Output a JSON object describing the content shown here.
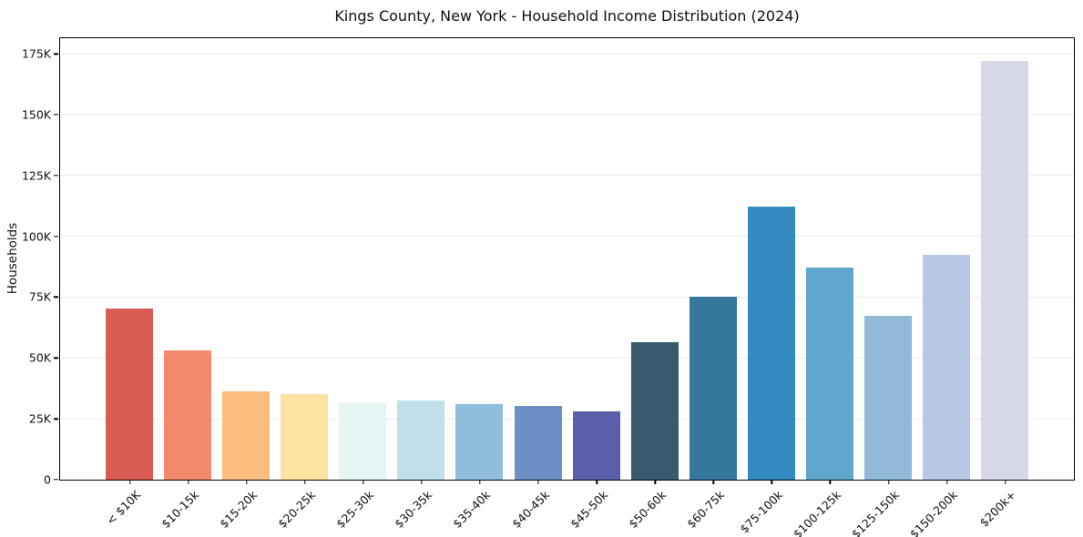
{
  "page": {
    "background": "#ffffff"
  },
  "chart_data": {
    "type": "bar",
    "title": "Kings County, New York - Household Income Distribution (2024)",
    "xlabel": "",
    "ylabel": "Households",
    "categories": [
      "< $10K",
      "$10-15k",
      "$15-20k",
      "$20-25k",
      "$25-30k",
      "$30-35k",
      "$35-40k",
      "$40-45k",
      "$45-50k",
      "$50-60k",
      "$60-75k",
      "$75-100k",
      "$100-125k",
      "$125-150k",
      "$150-200k",
      "$200k+"
    ],
    "values": [
      70000,
      53000,
      36200,
      34800,
      31400,
      32500,
      31000,
      30000,
      28000,
      56400,
      75100,
      112200,
      86800,
      67000,
      92300,
      171700
    ],
    "bar_colors": [
      "#d95c52",
      "#f2886c",
      "#fabd7e",
      "#fce3a2",
      "#e6f4f4",
      "#bfe0ea",
      "#90bddc",
      "#6c90c5",
      "#5a5fab",
      "#375a6d",
      "#36789c",
      "#348bc0",
      "#5fa7cc",
      "#91bad9",
      "#b6c8e2",
      "#d6d8e6"
    ],
    "ylim": [
      0,
      181400
    ],
    "yticks": [
      0,
      25000,
      50000,
      75000,
      100000,
      125000,
      150000,
      175000
    ],
    "ytick_labels": [
      "0",
      "25K",
      "50K",
      "75K",
      "100K",
      "125K",
      "150K",
      "175K"
    ],
    "grid": "horizontal",
    "legend": "none",
    "spine_color": "#000000",
    "gridline_color": "#ebebeb"
  }
}
